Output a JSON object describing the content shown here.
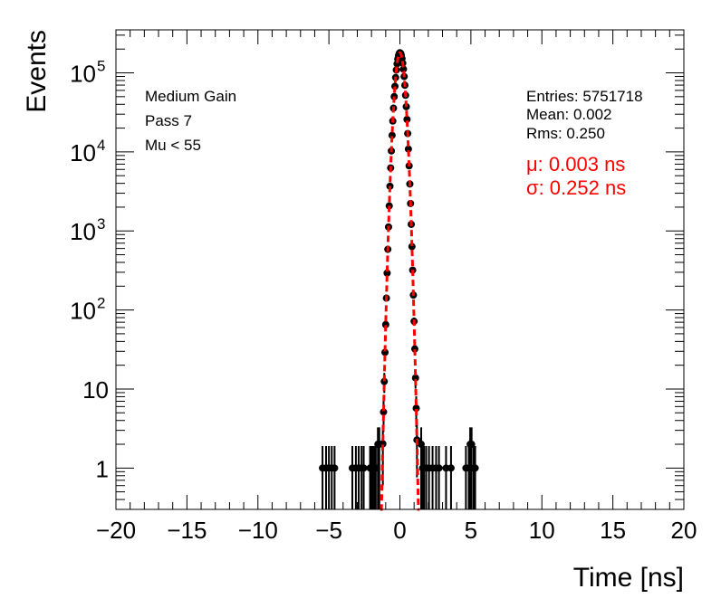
{
  "chart_data": {
    "type": "scatter",
    "title": "",
    "xlabel": "Time [ns]",
    "ylabel": "Events",
    "xlim": [
      -20,
      20
    ],
    "ylim": [
      0.3,
      350000
    ],
    "yscale": "log",
    "grid": false,
    "x_ticks": [
      -20,
      -15,
      -10,
      -5,
      0,
      5,
      10,
      15,
      20
    ],
    "x_tick_labels": [
      "−20",
      "−15",
      "−10",
      "−5",
      "0",
      "5",
      "10",
      "15",
      "20"
    ],
    "y_ticks": [
      {
        "value": 1,
        "label": "1",
        "sup": ""
      },
      {
        "value": 10,
        "label": "10",
        "sup": ""
      },
      {
        "value": 100,
        "label": "10",
        "sup": "2"
      },
      {
        "value": 1000,
        "label": "10",
        "sup": "3"
      },
      {
        "value": 10000,
        "label": "10",
        "sup": "4"
      },
      {
        "value": 100000,
        "label": "10",
        "sup": "5"
      }
    ],
    "annotations": [
      "Medium Gain",
      "Pass 7",
      "Mu < 55"
    ],
    "stats": [
      "Entries: 5751718",
      "Mean: 0.002",
      "Rms: 0.250"
    ],
    "fit_labels": [
      "μ: 0.003 ns",
      "σ: 0.252 ns"
    ],
    "fit": {
      "amplitude": 180000,
      "mean": 0.003,
      "sigma": 0.252,
      "color": "#ff0000"
    },
    "series": [
      {
        "marker_color": "#000000",
        "core_bin_width": 0.05,
        "core_range": [
          -1.4,
          1.45
        ],
        "points": [
          [
            -5.45,
            1
          ],
          [
            -5.2,
            1
          ],
          [
            -5.0,
            1
          ],
          [
            -4.8,
            1
          ],
          [
            -4.6,
            1
          ],
          [
            -3.35,
            1
          ],
          [
            -3.1,
            1
          ],
          [
            -2.9,
            1
          ],
          [
            -2.7,
            1
          ],
          [
            -2.55,
            1
          ],
          [
            -2.1,
            1
          ],
          [
            -2.0,
            1
          ],
          [
            -1.9,
            1
          ],
          [
            -1.8,
            1
          ],
          [
            -1.7,
            1
          ],
          [
            -1.55,
            2
          ],
          [
            -1.45,
            2
          ],
          [
            1.5,
            2
          ],
          [
            1.6,
            1
          ],
          [
            1.7,
            1
          ],
          [
            1.85,
            1
          ],
          [
            2.05,
            1
          ],
          [
            2.3,
            1
          ],
          [
            2.55,
            1
          ],
          [
            2.75,
            1
          ],
          [
            3.25,
            1
          ],
          [
            3.6,
            1
          ],
          [
            4.65,
            1
          ],
          [
            4.85,
            1
          ],
          [
            4.95,
            2
          ],
          [
            5.05,
            2
          ],
          [
            5.2,
            1
          ],
          [
            5.3,
            1
          ]
        ]
      }
    ]
  }
}
